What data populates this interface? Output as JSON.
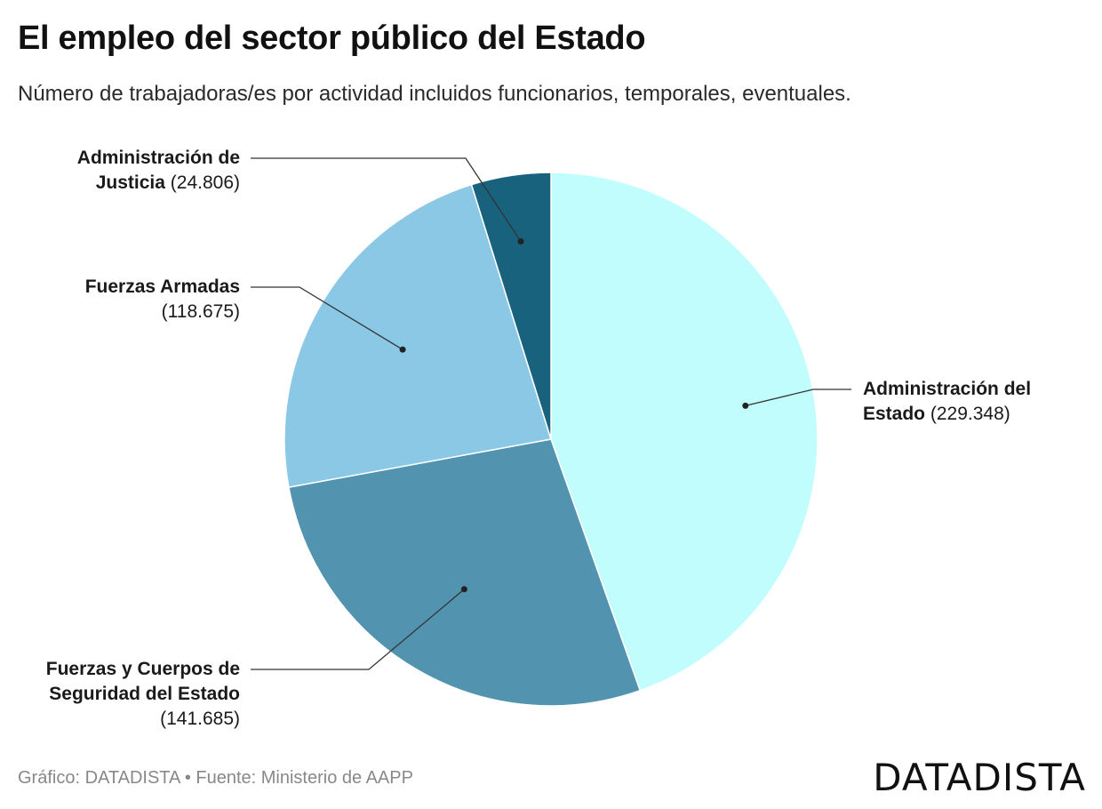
{
  "header": {
    "title": "El empleo del sector público del Estado",
    "subtitle": "Número de trabajadoras/es por actividad incluidos funcionarios, temporales, eventuales."
  },
  "chart_data": {
    "type": "pie",
    "title": "El empleo del sector público del Estado",
    "subtitle": "Número de trabajadoras/es por actividad incluidos funcionarios, temporales, eventuales.",
    "slices": [
      {
        "label_bold": "Administración del Estado",
        "line1_bold": "Administración del",
        "line2_bold": "Estado",
        "value": 229348,
        "value_label": "(229.348)",
        "color": "#c2fdfd"
      },
      {
        "label_bold": "Fuerzas y Cuerpos de Seguridad del Estado",
        "line1_bold": "Fuerzas y Cuerpos de",
        "line2_bold": "Seguridad del Estado",
        "value": 141685,
        "value_label": "(141.685)",
        "color": "#5294b0"
      },
      {
        "label_bold": "Fuerzas Armadas",
        "line1_bold": "Fuerzas Armadas",
        "value": 118675,
        "value_label": "(118.675)",
        "color": "#8bc8e5"
      },
      {
        "label_bold": "Administración de Justicia",
        "line1_bold": "Administración de",
        "line2_bold": "Justicia",
        "value": 24806,
        "value_label": "(24.806)",
        "color": "#18627e"
      }
    ],
    "start": "12 o'clock",
    "direction": "clockwise",
    "units": "trabajadoras/es"
  },
  "footer": {
    "credit": "Gráfico: DATADISTA • Fuente: Ministerio de AAPP",
    "brand": "DATADISTA"
  }
}
